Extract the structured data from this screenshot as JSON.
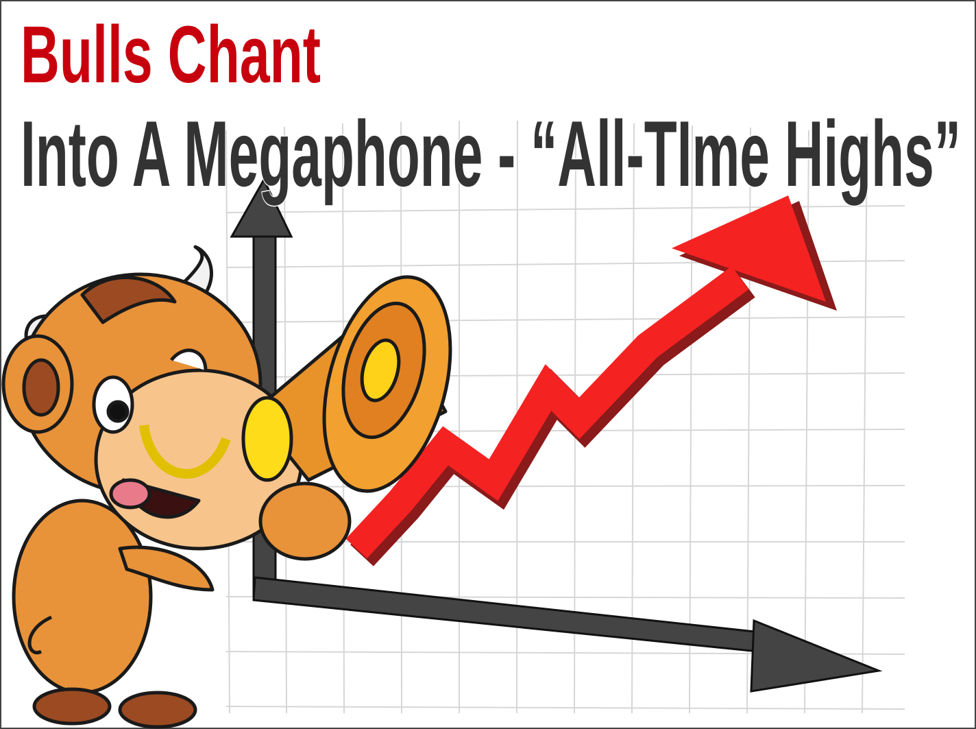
{
  "header": {
    "title": "Bulls Chant",
    "subtitle": "Into A Megaphone - “All-TIme Highs”"
  }
}
